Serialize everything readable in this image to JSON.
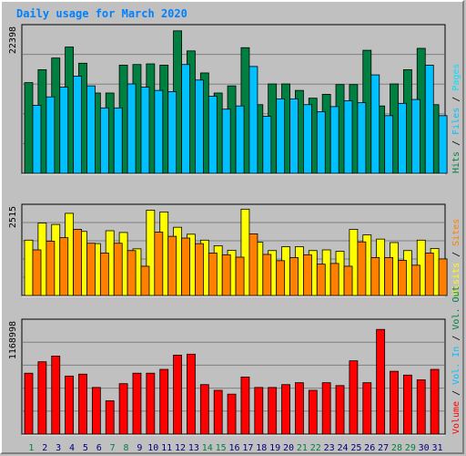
{
  "title": "Daily usage for March 2020",
  "colors": {
    "hits": "#008040",
    "files": "#00c0ff",
    "pages": "#00e0ff",
    "visits": "#ffff00",
    "sites": "#ff8000",
    "kbytes": "#ff0000",
    "vol_in": "#00c0ff",
    "vol_out": "#008040",
    "weekend": "#008040",
    "weekday": "#000080",
    "panel_bg": "#c0c0c0",
    "grid": "#808080"
  },
  "chart_data": [
    {
      "type": "bar",
      "panel": "top",
      "max_label": "22398",
      "ylim": [
        0,
        22398
      ],
      "categories": [
        "1",
        "2",
        "3",
        "4",
        "5",
        "6",
        "7",
        "8",
        "9",
        "10",
        "11",
        "12",
        "13",
        "14",
        "15",
        "16",
        "17",
        "18",
        "19",
        "20",
        "21",
        "22",
        "23",
        "24",
        "25",
        "26",
        "27",
        "28",
        "29",
        "30",
        "31"
      ],
      "legend": [
        {
          "text": "Hits",
          "color_key": "hits"
        },
        {
          "text": "Files",
          "color_key": "files"
        },
        {
          "text": "Pages",
          "color_key": "pages"
        }
      ],
      "series": [
        {
          "name": "Hits",
          "color_key": "hits",
          "values": [
            14000,
            16000,
            17800,
            19500,
            17000,
            12400,
            12400,
            16700,
            16800,
            16900,
            16700,
            22000,
            18900,
            15500,
            12400,
            13500,
            19400,
            10600,
            13800,
            13800,
            12800,
            11600,
            12200,
            13700,
            13700,
            19000,
            10400,
            13800,
            16000,
            19300,
            10600
          ]
        },
        {
          "name": "Files",
          "color_key": "files",
          "values": [
            10500,
            11800,
            13300,
            15000,
            13500,
            10100,
            10100,
            13800,
            13300,
            12800,
            12600,
            16800,
            14400,
            11900,
            9900,
            10400,
            16500,
            8800,
            11500,
            11500,
            10600,
            9500,
            10300,
            11200,
            10900,
            15200,
            8900,
            10800,
            11400,
            16700,
            8900
          ]
        },
        {
          "name": "Pages",
          "color_key": "pages",
          "values": [
            0,
            0,
            0,
            0,
            0,
            0,
            0,
            0,
            0,
            0,
            0,
            0,
            0,
            0,
            0,
            0,
            0,
            0,
            0,
            0,
            0,
            0,
            0,
            0,
            0,
            0,
            0,
            0,
            0,
            0,
            0
          ]
        }
      ]
    },
    {
      "type": "bar",
      "panel": "middle",
      "max_label": "2515",
      "ylim": [
        0,
        2515
      ],
      "categories": [
        "1",
        "2",
        "3",
        "4",
        "5",
        "6",
        "7",
        "8",
        "9",
        "10",
        "11",
        "12",
        "13",
        "14",
        "15",
        "16",
        "17",
        "18",
        "19",
        "20",
        "21",
        "22",
        "23",
        "24",
        "25",
        "26",
        "27",
        "28",
        "29",
        "30",
        "31"
      ],
      "legend": [
        {
          "text": "Visits",
          "color_key": "visits"
        },
        {
          "text": "Sites",
          "color_key": "sites"
        }
      ],
      "series": [
        {
          "name": "Visits",
          "color_key": "visits",
          "values": [
            1590,
            2080,
            2040,
            2360,
            1840,
            1490,
            1860,
            1810,
            1340,
            2450,
            2400,
            1960,
            1760,
            1590,
            1430,
            1300,
            2480,
            1530,
            1290,
            1400,
            1400,
            1290,
            1310,
            1270,
            1900,
            1740,
            1620,
            1520,
            1290,
            1590,
            1350
          ]
        },
        {
          "name": "Sites",
          "color_key": "sites",
          "values": [
            1310,
            1560,
            1660,
            1900,
            1500,
            1220,
            1500,
            1290,
            840,
            1820,
            1700,
            1650,
            1490,
            1220,
            1170,
            1100,
            1770,
            1180,
            1000,
            1090,
            1170,
            900,
            920,
            840,
            1540,
            1090,
            1090,
            1010,
            870,
            1220,
            1050
          ]
        }
      ]
    },
    {
      "type": "bar",
      "panel": "bottom",
      "max_label": "1168998",
      "ylim": [
        0,
        1168998
      ],
      "categories": [
        "1",
        "2",
        "3",
        "4",
        "5",
        "6",
        "7",
        "8",
        "9",
        "10",
        "11",
        "12",
        "13",
        "14",
        "15",
        "16",
        "17",
        "18",
        "19",
        "20",
        "21",
        "22",
        "23",
        "24",
        "25",
        "26",
        "27",
        "28",
        "29",
        "30",
        "31"
      ],
      "legend": [
        {
          "text": "Volume",
          "color_key": "kbytes"
        },
        {
          "text": "Vol. In",
          "color_key": "vol_in"
        },
        {
          "text": "Vol. Out",
          "color_key": "vol_out"
        }
      ],
      "series": [
        {
          "name": "Volume",
          "color_key": "kbytes",
          "values": [
            640000,
            760000,
            820000,
            610000,
            630000,
            490000,
            350000,
            530000,
            640000,
            640000,
            680000,
            830000,
            840000,
            520000,
            460000,
            420000,
            600000,
            490000,
            490000,
            520000,
            540000,
            460000,
            540000,
            510000,
            770000,
            540000,
            1100000,
            660000,
            620000,
            570000,
            680000
          ]
        },
        {
          "name": "Vol. In",
          "color_key": "vol_in",
          "values": [
            0,
            0,
            0,
            0,
            0,
            0,
            0,
            0,
            0,
            0,
            0,
            0,
            0,
            0,
            0,
            0,
            0,
            0,
            0,
            0,
            0,
            0,
            0,
            0,
            0,
            0,
            0,
            0,
            0,
            0,
            0
          ]
        },
        {
          "name": "Vol. Out",
          "color_key": "vol_out",
          "values": [
            0,
            0,
            0,
            0,
            0,
            0,
            0,
            0,
            0,
            0,
            0,
            0,
            0,
            0,
            0,
            0,
            0,
            0,
            0,
            0,
            0,
            0,
            0,
            0,
            0,
            0,
            0,
            0,
            0,
            0,
            0
          ]
        }
      ]
    }
  ],
  "weekend_days": [
    "1",
    "7",
    "8",
    "14",
    "15",
    "21",
    "22",
    "28",
    "29"
  ]
}
